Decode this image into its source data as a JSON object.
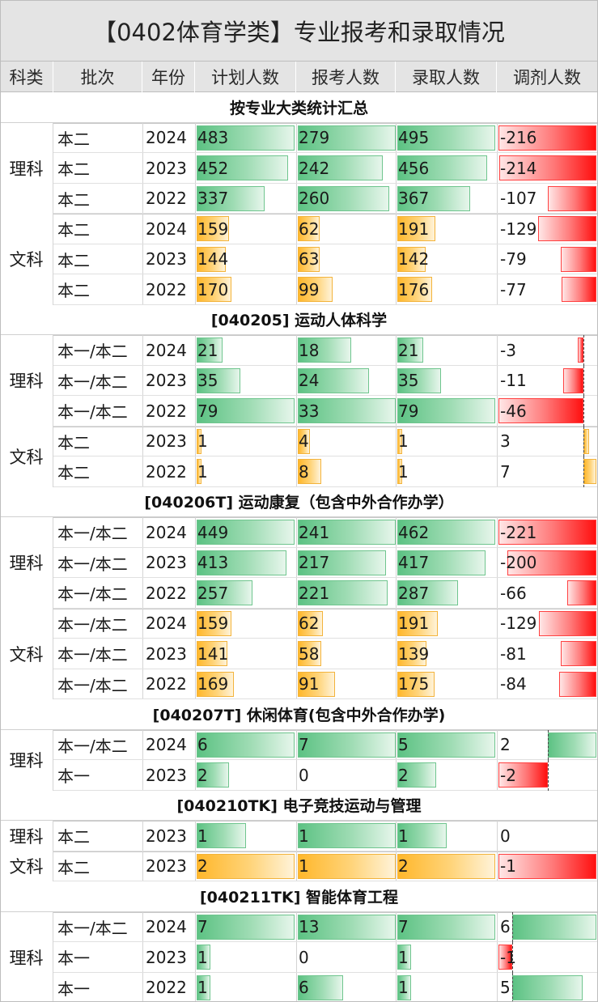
{
  "title": "【0402体育学类】专业报考和录取情况",
  "headers": [
    "科类",
    "批次",
    "年份",
    "计划人数",
    "报考人数",
    "录取人数",
    "调剂人数"
  ],
  "colors": {
    "green": "#5cc283",
    "orange": "#ffb72b",
    "red": "#ff1010"
  },
  "sections": [
    {
      "title": "按专业大类统计汇总",
      "groups": [
        {
          "label": "理科",
          "color": "green",
          "rows": [
            {
              "batch": "本二",
              "year": "2024",
              "plan": "483",
              "apply": "279",
              "admit": "495",
              "adjust": "-216"
            },
            {
              "batch": "本二",
              "year": "2023",
              "plan": "452",
              "apply": "242",
              "admit": "456",
              "adjust": "-214"
            },
            {
              "batch": "本二",
              "year": "2022",
              "plan": "337",
              "apply": "260",
              "admit": "367",
              "adjust": "-107"
            }
          ]
        },
        {
          "label": "文科",
          "color": "orange",
          "rows": [
            {
              "batch": "本二",
              "year": "2024",
              "plan": "159",
              "apply": "62",
              "admit": "191",
              "adjust": "-129"
            },
            {
              "batch": "本二",
              "year": "2023",
              "plan": "144",
              "apply": "63",
              "admit": "142",
              "adjust": "-79"
            },
            {
              "batch": "本二",
              "year": "2022",
              "plan": "170",
              "apply": "99",
              "admit": "176",
              "adjust": "-77"
            }
          ]
        }
      ]
    },
    {
      "title": "[040205] 运动人体科学",
      "groups": [
        {
          "label": "理科",
          "color": "green",
          "rows": [
            {
              "batch": "本一/本二",
              "year": "2024",
              "plan": "21",
              "apply": "18",
              "admit": "21",
              "adjust": "-3"
            },
            {
              "batch": "本一/本二",
              "year": "2023",
              "plan": "35",
              "apply": "24",
              "admit": "35",
              "adjust": "-11"
            },
            {
              "batch": "本一/本二",
              "year": "2022",
              "plan": "79",
              "apply": "33",
              "admit": "79",
              "adjust": "-46"
            }
          ]
        },
        {
          "label": "文科",
          "color": "orange",
          "rows": [
            {
              "batch": "本二",
              "year": "2023",
              "plan": "1",
              "apply": "4",
              "admit": "1",
              "adjust": "3"
            },
            {
              "batch": "本二",
              "year": "2022",
              "plan": "1",
              "apply": "8",
              "admit": "1",
              "adjust": "7"
            }
          ]
        }
      ]
    },
    {
      "title": "[040206T] 运动康复（包含中外合作办学）",
      "groups": [
        {
          "label": "理科",
          "color": "green",
          "rows": [
            {
              "batch": "本一/本二",
              "year": "2024",
              "plan": "449",
              "apply": "241",
              "admit": "462",
              "adjust": "-221"
            },
            {
              "batch": "本一/本二",
              "year": "2023",
              "plan": "413",
              "apply": "217",
              "admit": "417",
              "adjust": "-200"
            },
            {
              "batch": "本一/本二",
              "year": "2022",
              "plan": "257",
              "apply": "221",
              "admit": "287",
              "adjust": "-66"
            }
          ]
        },
        {
          "label": "文科",
          "color": "orange",
          "rows": [
            {
              "batch": "本一/本二",
              "year": "2024",
              "plan": "159",
              "apply": "62",
              "admit": "191",
              "adjust": "-129"
            },
            {
              "batch": "本一/本二",
              "year": "2023",
              "plan": "141",
              "apply": "58",
              "admit": "139",
              "adjust": "-81"
            },
            {
              "batch": "本一/本二",
              "year": "2022",
              "plan": "169",
              "apply": "91",
              "admit": "175",
              "adjust": "-84"
            }
          ]
        }
      ]
    },
    {
      "title": "[040207T] 休闲体育(包含中外合作办学)",
      "groups": [
        {
          "label": "理科",
          "color": "green",
          "rows": [
            {
              "batch": "本一/本二",
              "year": "2024",
              "plan": "6",
              "apply": "7",
              "admit": "5",
              "adjust": "2"
            },
            {
              "batch": "本一",
              "year": "2023",
              "plan": "2",
              "apply": "0",
              "admit": "2",
              "adjust": "-2"
            }
          ]
        }
      ]
    },
    {
      "title": "[040210TK] 电子竞技运动与管理",
      "groups": [
        {
          "label": "理科",
          "color": "green",
          "rows": [
            {
              "batch": "本二",
              "year": "2023",
              "plan": "1",
              "apply": "1",
              "admit": "1",
              "adjust": "0"
            }
          ]
        },
        {
          "label": "文科",
          "color": "orange",
          "rows": [
            {
              "batch": "本二",
              "year": "2023",
              "plan": "2",
              "apply": "1",
              "admit": "2",
              "adjust": "-1"
            }
          ]
        }
      ]
    },
    {
      "title": "[040211TK] 智能体育工程",
      "groups": [
        {
          "label": "理科",
          "color": "green",
          "rows": [
            {
              "batch": "本一/本二",
              "year": "2024",
              "plan": "7",
              "apply": "13",
              "admit": "7",
              "adjust": "6"
            },
            {
              "batch": "本一",
              "year": "2023",
              "plan": "1",
              "apply": "0",
              "admit": "1",
              "adjust": "-1"
            },
            {
              "batch": "本一",
              "year": "2022",
              "plan": "1",
              "apply": "6",
              "admit": "1",
              "adjust": "5"
            }
          ]
        }
      ]
    }
  ]
}
